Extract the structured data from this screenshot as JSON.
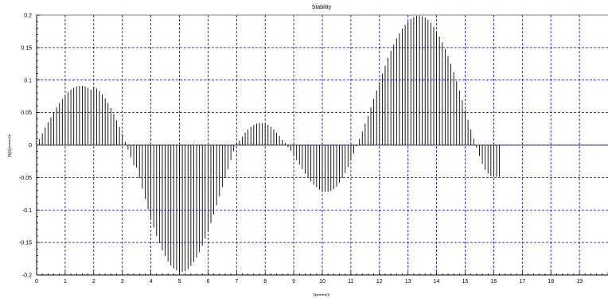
{
  "chart_data": {
    "type": "bar",
    "style": "stem",
    "title": "Stability",
    "xlabel": "n====>",
    "ylabel": "h(n)====>",
    "xlim": [
      0,
      20
    ],
    "ylim": [
      -0.2,
      0.2
    ],
    "x_ticks": [
      "0",
      "1",
      "2",
      "3",
      "4",
      "5",
      "6",
      "7",
      "8",
      "9",
      "10",
      "11",
      "12",
      "13",
      "14",
      "15",
      "16",
      "17",
      "18",
      "19"
    ],
    "y_ticks": [
      "0.2",
      "0.15",
      "0.1",
      "0.05",
      "0",
      "-0.05",
      "-0.1",
      "-0.15",
      "-0.2"
    ],
    "grid": true,
    "grid_color": "#0000cc",
    "stem_color": "#000000",
    "series": [
      {
        "x_start": 0,
        "x_step": 0.1,
        "values": [
          0.0,
          0.009,
          0.018,
          0.027,
          0.035,
          0.043,
          0.051,
          0.058,
          0.065,
          0.071,
          0.076,
          0.081,
          0.085,
          0.088,
          0.09,
          0.091,
          0.091,
          0.09,
          0.088,
          0.085,
          0.09,
          0.087,
          0.083,
          0.078,
          0.072,
          0.065,
          0.057,
          0.048,
          0.038,
          0.028,
          0.017,
          0.005,
          -0.007,
          -0.019,
          -0.031,
          -0.035,
          -0.051,
          -0.067,
          -0.083,
          -0.099,
          -0.113,
          -0.127,
          -0.14,
          -0.151,
          -0.162,
          -0.171,
          -0.179,
          -0.185,
          -0.19,
          -0.193,
          -0.195,
          -0.195,
          -0.194,
          -0.191,
          -0.186,
          -0.18,
          -0.173,
          -0.165,
          -0.155,
          -0.144,
          -0.132,
          -0.12,
          -0.107,
          -0.093,
          -0.079,
          -0.065,
          -0.051,
          -0.037,
          -0.023,
          -0.01,
          0.002,
          0.007,
          0.013,
          0.019,
          0.024,
          0.028,
          0.031,
          0.033,
          0.034,
          0.034,
          0.033,
          0.031,
          0.028,
          0.024,
          0.019,
          0.014,
          0.008,
          0.003,
          -0.003,
          -0.009,
          -0.016,
          -0.023,
          -0.03,
          -0.037,
          -0.044,
          -0.05,
          -0.056,
          -0.061,
          -0.065,
          -0.069,
          -0.071,
          -0.072,
          -0.072,
          -0.071,
          -0.068,
          -0.064,
          -0.058,
          -0.051,
          -0.043,
          -0.034,
          -0.024,
          -0.013,
          -0.002,
          0.009,
          0.021,
          0.033,
          0.045,
          0.058,
          0.071,
          0.084,
          0.097,
          0.11,
          0.122,
          0.134,
          0.145,
          0.155,
          0.164,
          0.172,
          0.179,
          0.185,
          0.19,
          0.194,
          0.197,
          0.199,
          0.199,
          0.198,
          0.196,
          0.193,
          0.188,
          0.182,
          0.175,
          0.167,
          0.158,
          0.148,
          0.137,
          0.125,
          0.112,
          0.098,
          0.084,
          0.069,
          0.054,
          0.039,
          0.024,
          0.01,
          -0.004,
          -0.017,
          -0.029,
          -0.038,
          -0.044,
          -0.048,
          -0.049,
          -0.049,
          -0.049
        ]
      }
    ]
  }
}
